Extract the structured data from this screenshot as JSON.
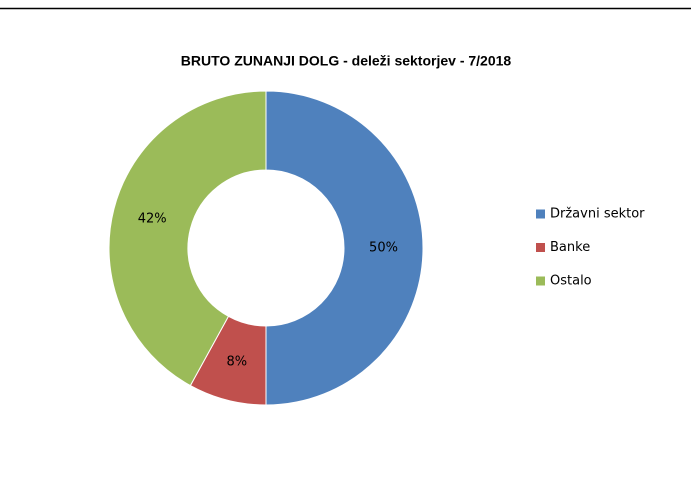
{
  "chart_data": {
    "type": "donut",
    "title": "BRUTO ZUNANJI DOLG - deleži sektorjev - 7/2018",
    "categories": [
      "Državni sektor",
      "Banke",
      "Ostalo"
    ],
    "values": [
      50,
      8,
      42
    ],
    "value_labels": [
      "50%",
      "8%",
      "42%"
    ],
    "colors": [
      "#4f81bd",
      "#c0504d",
      "#9bbb59"
    ],
    "legend": "right"
  }
}
